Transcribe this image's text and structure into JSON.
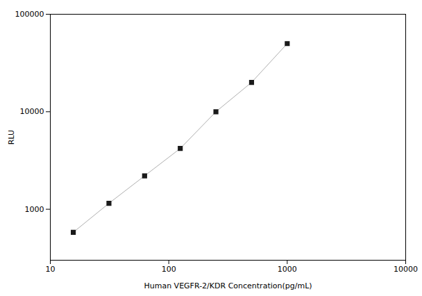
{
  "chart_data": {
    "type": "line",
    "x": [
      15.625,
      31.25,
      62.5,
      125,
      250,
      500,
      1000
    ],
    "series": [
      {
        "values": [
          580,
          1150,
          2200,
          4200,
          10000,
          20000,
          50000
        ],
        "color": "#1a1a1a",
        "marker": "square"
      }
    ],
    "color": "#b0b0b0",
    "xlabel": "Human VEGFR-2/KDR Concentration(pg/mL)",
    "ylabel": "RLU",
    "xlim": [
      10,
      10000
    ],
    "ylim": [
      300,
      100000
    ],
    "xticks": [
      10,
      100,
      1000,
      10000
    ],
    "yticks": [
      1000,
      10000,
      100000
    ],
    "log": true,
    "grid": false
  }
}
